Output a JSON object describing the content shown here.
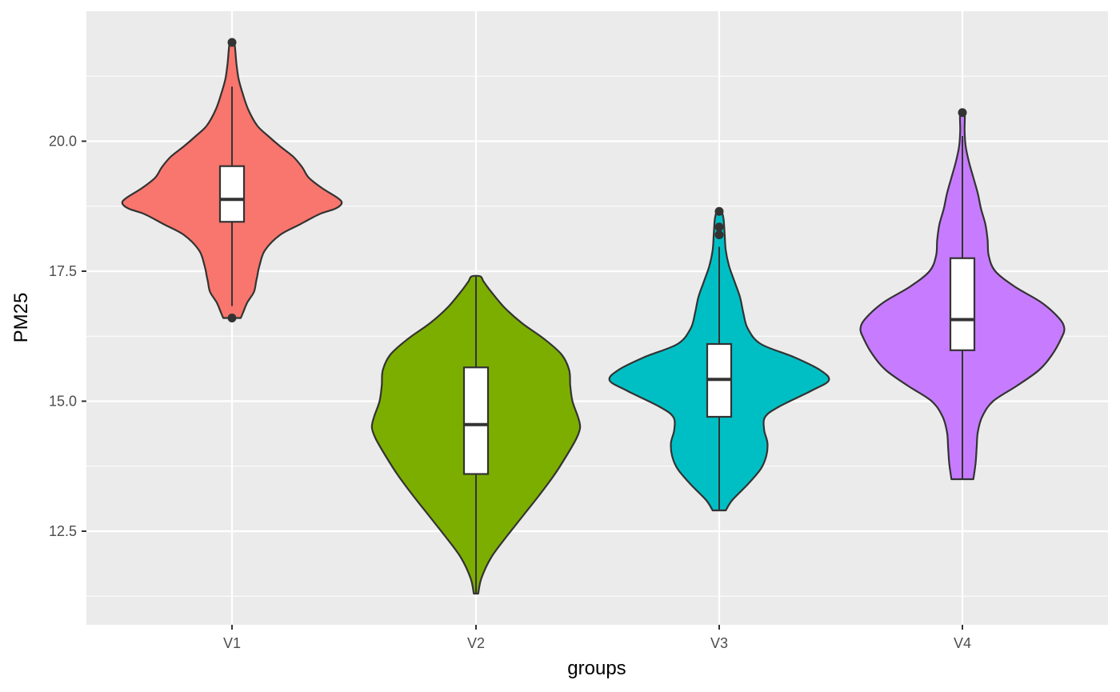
{
  "chart_data": {
    "type": "violin",
    "xlabel": "groups",
    "ylabel": "PM25",
    "categories": [
      "V1",
      "V2",
      "V3",
      "V4"
    ],
    "y_ticks": [
      "12.5",
      "15.0",
      "17.5",
      "20.0"
    ],
    "y_tick_values": [
      12.5,
      15.0,
      17.5,
      20.0
    ],
    "ylim": [
      10.7,
      22.5
    ],
    "grid": true,
    "legend": "none",
    "series": [
      {
        "category": "V1",
        "color": "#F8766D",
        "min": 16.6,
        "max": 21.9,
        "density": [
          [
            16.6,
            0.08
          ],
          [
            16.7,
            0.1
          ],
          [
            16.9,
            0.14
          ],
          [
            17.1,
            0.2
          ],
          [
            17.3,
            0.22
          ],
          [
            17.4,
            0.23
          ],
          [
            17.6,
            0.25
          ],
          [
            17.9,
            0.3
          ],
          [
            18.2,
            0.44
          ],
          [
            18.4,
            0.62
          ],
          [
            18.6,
            0.8
          ],
          [
            18.7,
            0.94
          ],
          [
            18.8,
            1.0
          ],
          [
            18.9,
            0.97
          ],
          [
            19.1,
            0.82
          ],
          [
            19.3,
            0.7
          ],
          [
            19.5,
            0.64
          ],
          [
            19.7,
            0.56
          ],
          [
            19.9,
            0.44
          ],
          [
            20.1,
            0.33
          ],
          [
            20.3,
            0.23
          ],
          [
            20.6,
            0.15
          ],
          [
            20.9,
            0.1
          ],
          [
            21.2,
            0.06
          ],
          [
            21.5,
            0.04
          ],
          [
            21.9,
            0.02
          ]
        ],
        "q1": 18.45,
        "median": 18.88,
        "q3": 19.52,
        "whisker_low": 16.83,
        "whisker_high": 21.05,
        "outliers": [
          21.9,
          16.6
        ]
      },
      {
        "category": "V2",
        "color": "#7CAE00",
        "min": 11.3,
        "max": 17.4,
        "density": [
          [
            11.3,
            0.02
          ],
          [
            11.6,
            0.05
          ],
          [
            12.0,
            0.14
          ],
          [
            12.4,
            0.28
          ],
          [
            12.8,
            0.43
          ],
          [
            13.2,
            0.58
          ],
          [
            13.6,
            0.72
          ],
          [
            14.0,
            0.84
          ],
          [
            14.3,
            0.92
          ],
          [
            14.5,
            0.95
          ],
          [
            14.7,
            0.93
          ],
          [
            15.0,
            0.88
          ],
          [
            15.3,
            0.86
          ],
          [
            15.6,
            0.85
          ],
          [
            15.9,
            0.78
          ],
          [
            16.2,
            0.62
          ],
          [
            16.5,
            0.42
          ],
          [
            16.8,
            0.26
          ],
          [
            17.1,
            0.14
          ],
          [
            17.3,
            0.07
          ],
          [
            17.4,
            0.04
          ]
        ],
        "q1": 13.6,
        "median": 14.55,
        "q3": 15.65,
        "whisker_low": 11.3,
        "whisker_high": 17.4,
        "outliers": []
      },
      {
        "category": "V3",
        "color": "#00BFC4",
        "min": 12.9,
        "max": 18.65,
        "density": [
          [
            12.9,
            0.06
          ],
          [
            13.1,
            0.12
          ],
          [
            13.4,
            0.26
          ],
          [
            13.7,
            0.38
          ],
          [
            13.95,
            0.43
          ],
          [
            14.2,
            0.44
          ],
          [
            14.45,
            0.41
          ],
          [
            14.7,
            0.42
          ],
          [
            14.9,
            0.55
          ],
          [
            15.2,
            0.84
          ],
          [
            15.4,
            1.0
          ],
          [
            15.6,
            0.92
          ],
          [
            15.85,
            0.68
          ],
          [
            16.1,
            0.38
          ],
          [
            16.4,
            0.26
          ],
          [
            16.7,
            0.22
          ],
          [
            17.0,
            0.19
          ],
          [
            17.3,
            0.14
          ],
          [
            17.6,
            0.09
          ],
          [
            17.9,
            0.06
          ],
          [
            18.2,
            0.05
          ],
          [
            18.5,
            0.04
          ],
          [
            18.65,
            0.02
          ]
        ],
        "q1": 14.7,
        "median": 15.42,
        "q3": 16.1,
        "whisker_low": 12.9,
        "whisker_high": 17.97,
        "outliers": [
          18.2,
          18.35,
          18.65
        ]
      },
      {
        "category": "V4",
        "color": "#C77CFF",
        "min": 13.5,
        "max": 20.55,
        "density": [
          [
            13.5,
            0.1
          ],
          [
            13.8,
            0.12
          ],
          [
            14.1,
            0.13
          ],
          [
            14.4,
            0.14
          ],
          [
            14.7,
            0.18
          ],
          [
            15.0,
            0.28
          ],
          [
            15.3,
            0.5
          ],
          [
            15.6,
            0.7
          ],
          [
            15.9,
            0.82
          ],
          [
            16.2,
            0.9
          ],
          [
            16.4,
            0.93
          ],
          [
            16.6,
            0.88
          ],
          [
            16.9,
            0.72
          ],
          [
            17.2,
            0.48
          ],
          [
            17.5,
            0.3
          ],
          [
            17.8,
            0.24
          ],
          [
            18.1,
            0.23
          ],
          [
            18.4,
            0.21
          ],
          [
            18.7,
            0.17
          ],
          [
            19.0,
            0.14
          ],
          [
            19.3,
            0.1
          ],
          [
            19.6,
            0.06
          ],
          [
            19.9,
            0.03
          ],
          [
            20.2,
            0.02
          ],
          [
            20.55,
            0.02
          ]
        ],
        "q1": 15.98,
        "median": 16.57,
        "q3": 17.75,
        "whisker_low": 13.5,
        "whisker_high": 20.1,
        "outliers": [
          20.55
        ]
      }
    ]
  }
}
